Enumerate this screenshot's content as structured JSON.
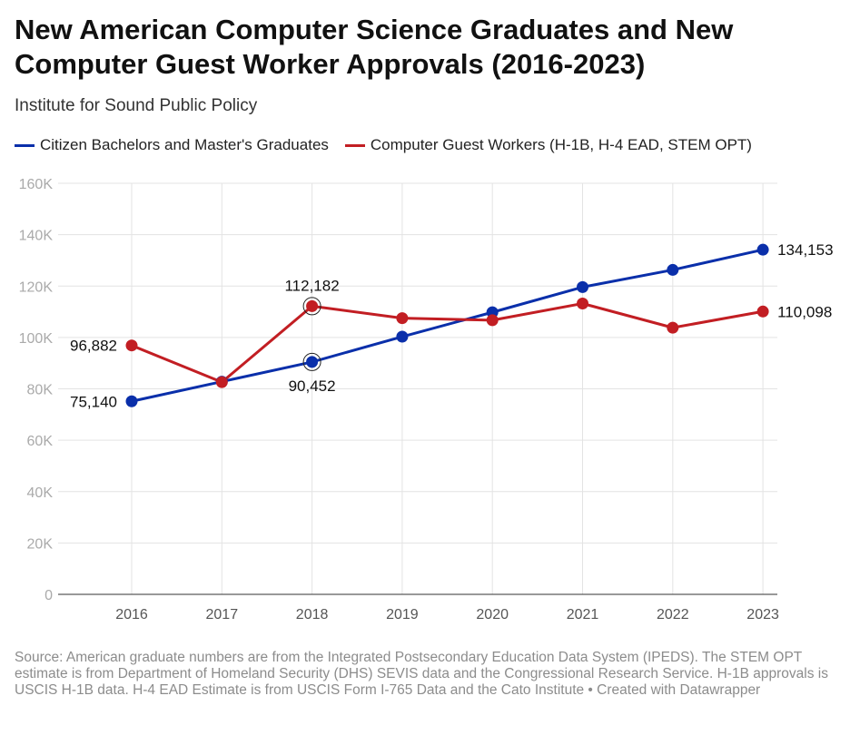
{
  "header": {
    "title": "New American Computer Science Graduates and New Computer Guest Worker Approvals (2016-2023)",
    "subtitle": "Institute for Sound Public Policy"
  },
  "footer": {
    "source": "Source: American graduate numbers are from the Integrated Postsecondary Education Data System (IPEDS). The STEM OPT estimate is from Department of Homeland Security (DHS) SEVIS data and the Congressional Research Service. H-1B approvals is USCIS H-1B data. H-4 EAD Estimate is from USCIS Form I-765 Data and the Cato Institute • Created with Datawrapper"
  },
  "chart_data": {
    "type": "line",
    "title": "New American Computer Science Graduates and New Computer Guest Worker Approvals (2016-2023)",
    "xlabel": "",
    "ylabel": "",
    "x": [
      "2016",
      "2017",
      "2018",
      "2019",
      "2020",
      "2021",
      "2022",
      "2023"
    ],
    "ylim": [
      0,
      160000
    ],
    "yticks": [
      0,
      20000,
      40000,
      60000,
      80000,
      100000,
      120000,
      140000,
      160000
    ],
    "ytick_labels": [
      "0",
      "20K",
      "40K",
      "60K",
      "80K",
      "100K",
      "120K",
      "140K",
      "160K"
    ],
    "grid": true,
    "legend_position": "top-left",
    "series": [
      {
        "name": "Citizen Bachelors and Master's Graduates",
        "color": "#0a2faa",
        "values": [
          75140,
          82800,
          90452,
          100300,
          109800,
          119600,
          126300,
          134153
        ]
      },
      {
        "name": "Computer Guest Workers (H-1B, H-4 EAD, STEM OPT)",
        "color": "#c21e23",
        "values": [
          96882,
          82600,
          112182,
          107500,
          106700,
          113200,
          103800,
          110098
        ]
      }
    ],
    "annotations": [
      {
        "series": 1,
        "index": 0,
        "label": "96,882",
        "position": "left"
      },
      {
        "series": 0,
        "index": 0,
        "label": "75,140",
        "position": "left"
      },
      {
        "series": 1,
        "index": 2,
        "label": "112,182",
        "position": "above",
        "highlight": true
      },
      {
        "series": 0,
        "index": 2,
        "label": "90,452",
        "position": "below",
        "highlight": true
      },
      {
        "series": 0,
        "index": 7,
        "label": "134,153",
        "position": "right"
      },
      {
        "series": 1,
        "index": 7,
        "label": "110,098",
        "position": "right"
      }
    ]
  }
}
